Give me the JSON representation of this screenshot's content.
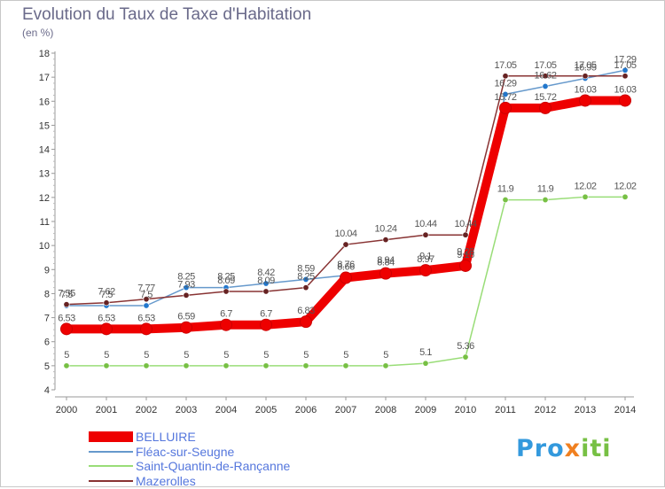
{
  "header": {
    "title": "Evolution du Taux de Taxe d'Habitation",
    "subtitle": "(en %)"
  },
  "logo": {
    "text": "Proxiti",
    "colors": [
      "#3399dd",
      "#f08020",
      "#77c044"
    ]
  },
  "chart_data": {
    "type": "line",
    "title": "Evolution du Taux de Taxe d'Habitation",
    "ylabel": "(en %)",
    "xlabel": "",
    "categories": [
      "2000",
      "2001",
      "2002",
      "2003",
      "2004",
      "2005",
      "2006",
      "2007",
      "2008",
      "2009",
      "2010",
      "2011",
      "2012",
      "2013",
      "2014"
    ],
    "yticks": [
      "4",
      "5",
      "6",
      "7",
      "8",
      "9",
      "10",
      "11",
      "12",
      "13",
      "14",
      "15",
      "16",
      "17",
      "18"
    ],
    "ylim": [
      4,
      18
    ],
    "grid": false,
    "legend_position": "bottom-left",
    "series": [
      {
        "name": "BELLUIRE",
        "color": "#ee0000",
        "marker_color": "#ee0000",
        "line_style": "thick",
        "values": [
          6.53,
          6.53,
          6.53,
          6.59,
          6.7,
          6.7,
          6.83,
          8.66,
          8.84,
          8.97,
          9.16,
          15.72,
          15.72,
          16.03,
          16.03
        ],
        "labels": [
          "6.53",
          "6.53",
          "6.53",
          "6.59",
          "6.7",
          "6.7",
          "6.83",
          "8.66",
          "8.84",
          "8.97",
          "9.16",
          "15.72",
          "15.72",
          "16.03",
          "16.03"
        ]
      },
      {
        "name": "Fléac-sur-Seugne",
        "color": "#6699cc",
        "marker_color": "#2277cc",
        "line_style": "thin",
        "values": [
          7.5,
          7.5,
          7.5,
          8.25,
          8.25,
          8.42,
          8.59,
          8.76,
          8.94,
          9.1,
          9.28,
          16.29,
          16.62,
          16.95,
          17.29
        ],
        "labels": [
          "7.5",
          "7.5",
          "7.5",
          "8.25",
          "8.25",
          "8.42",
          "8.59",
          "8.76",
          "8.94",
          "9.1",
          "9.28",
          "16.29",
          "16.62",
          "16.95",
          "17.29"
        ]
      },
      {
        "name": "Saint-Quantin-de-Rançanne",
        "color": "#99dd77",
        "marker_color": "#77c044",
        "line_style": "thin",
        "values": [
          5,
          5,
          5,
          5,
          5,
          5,
          5,
          5,
          5,
          5.1,
          5.36,
          11.9,
          11.9,
          12.02,
          12.02
        ],
        "labels": [
          "5",
          "5",
          "5",
          "5",
          "5",
          "5",
          "5",
          "5",
          "5",
          "5.1",
          "5.36",
          "11.9",
          "11.9",
          "12.02",
          "12.02"
        ]
      },
      {
        "name": "Mazerolles",
        "color": "#883333",
        "marker_color": "#662222",
        "line_style": "thin",
        "values": [
          7.55,
          7.62,
          7.77,
          7.93,
          8.09,
          8.09,
          8.25,
          10.04,
          10.24,
          10.44,
          10.44,
          17.05,
          17.05,
          17.05,
          17.05
        ],
        "labels": [
          "7.55",
          "7.62",
          "7.77",
          "7.93",
          "8.09",
          "8.09",
          "8.25",
          "10.04",
          "10.24",
          "10.44",
          "10.44",
          "17.05",
          "17.05",
          "17.05",
          "17.05"
        ]
      }
    ]
  }
}
